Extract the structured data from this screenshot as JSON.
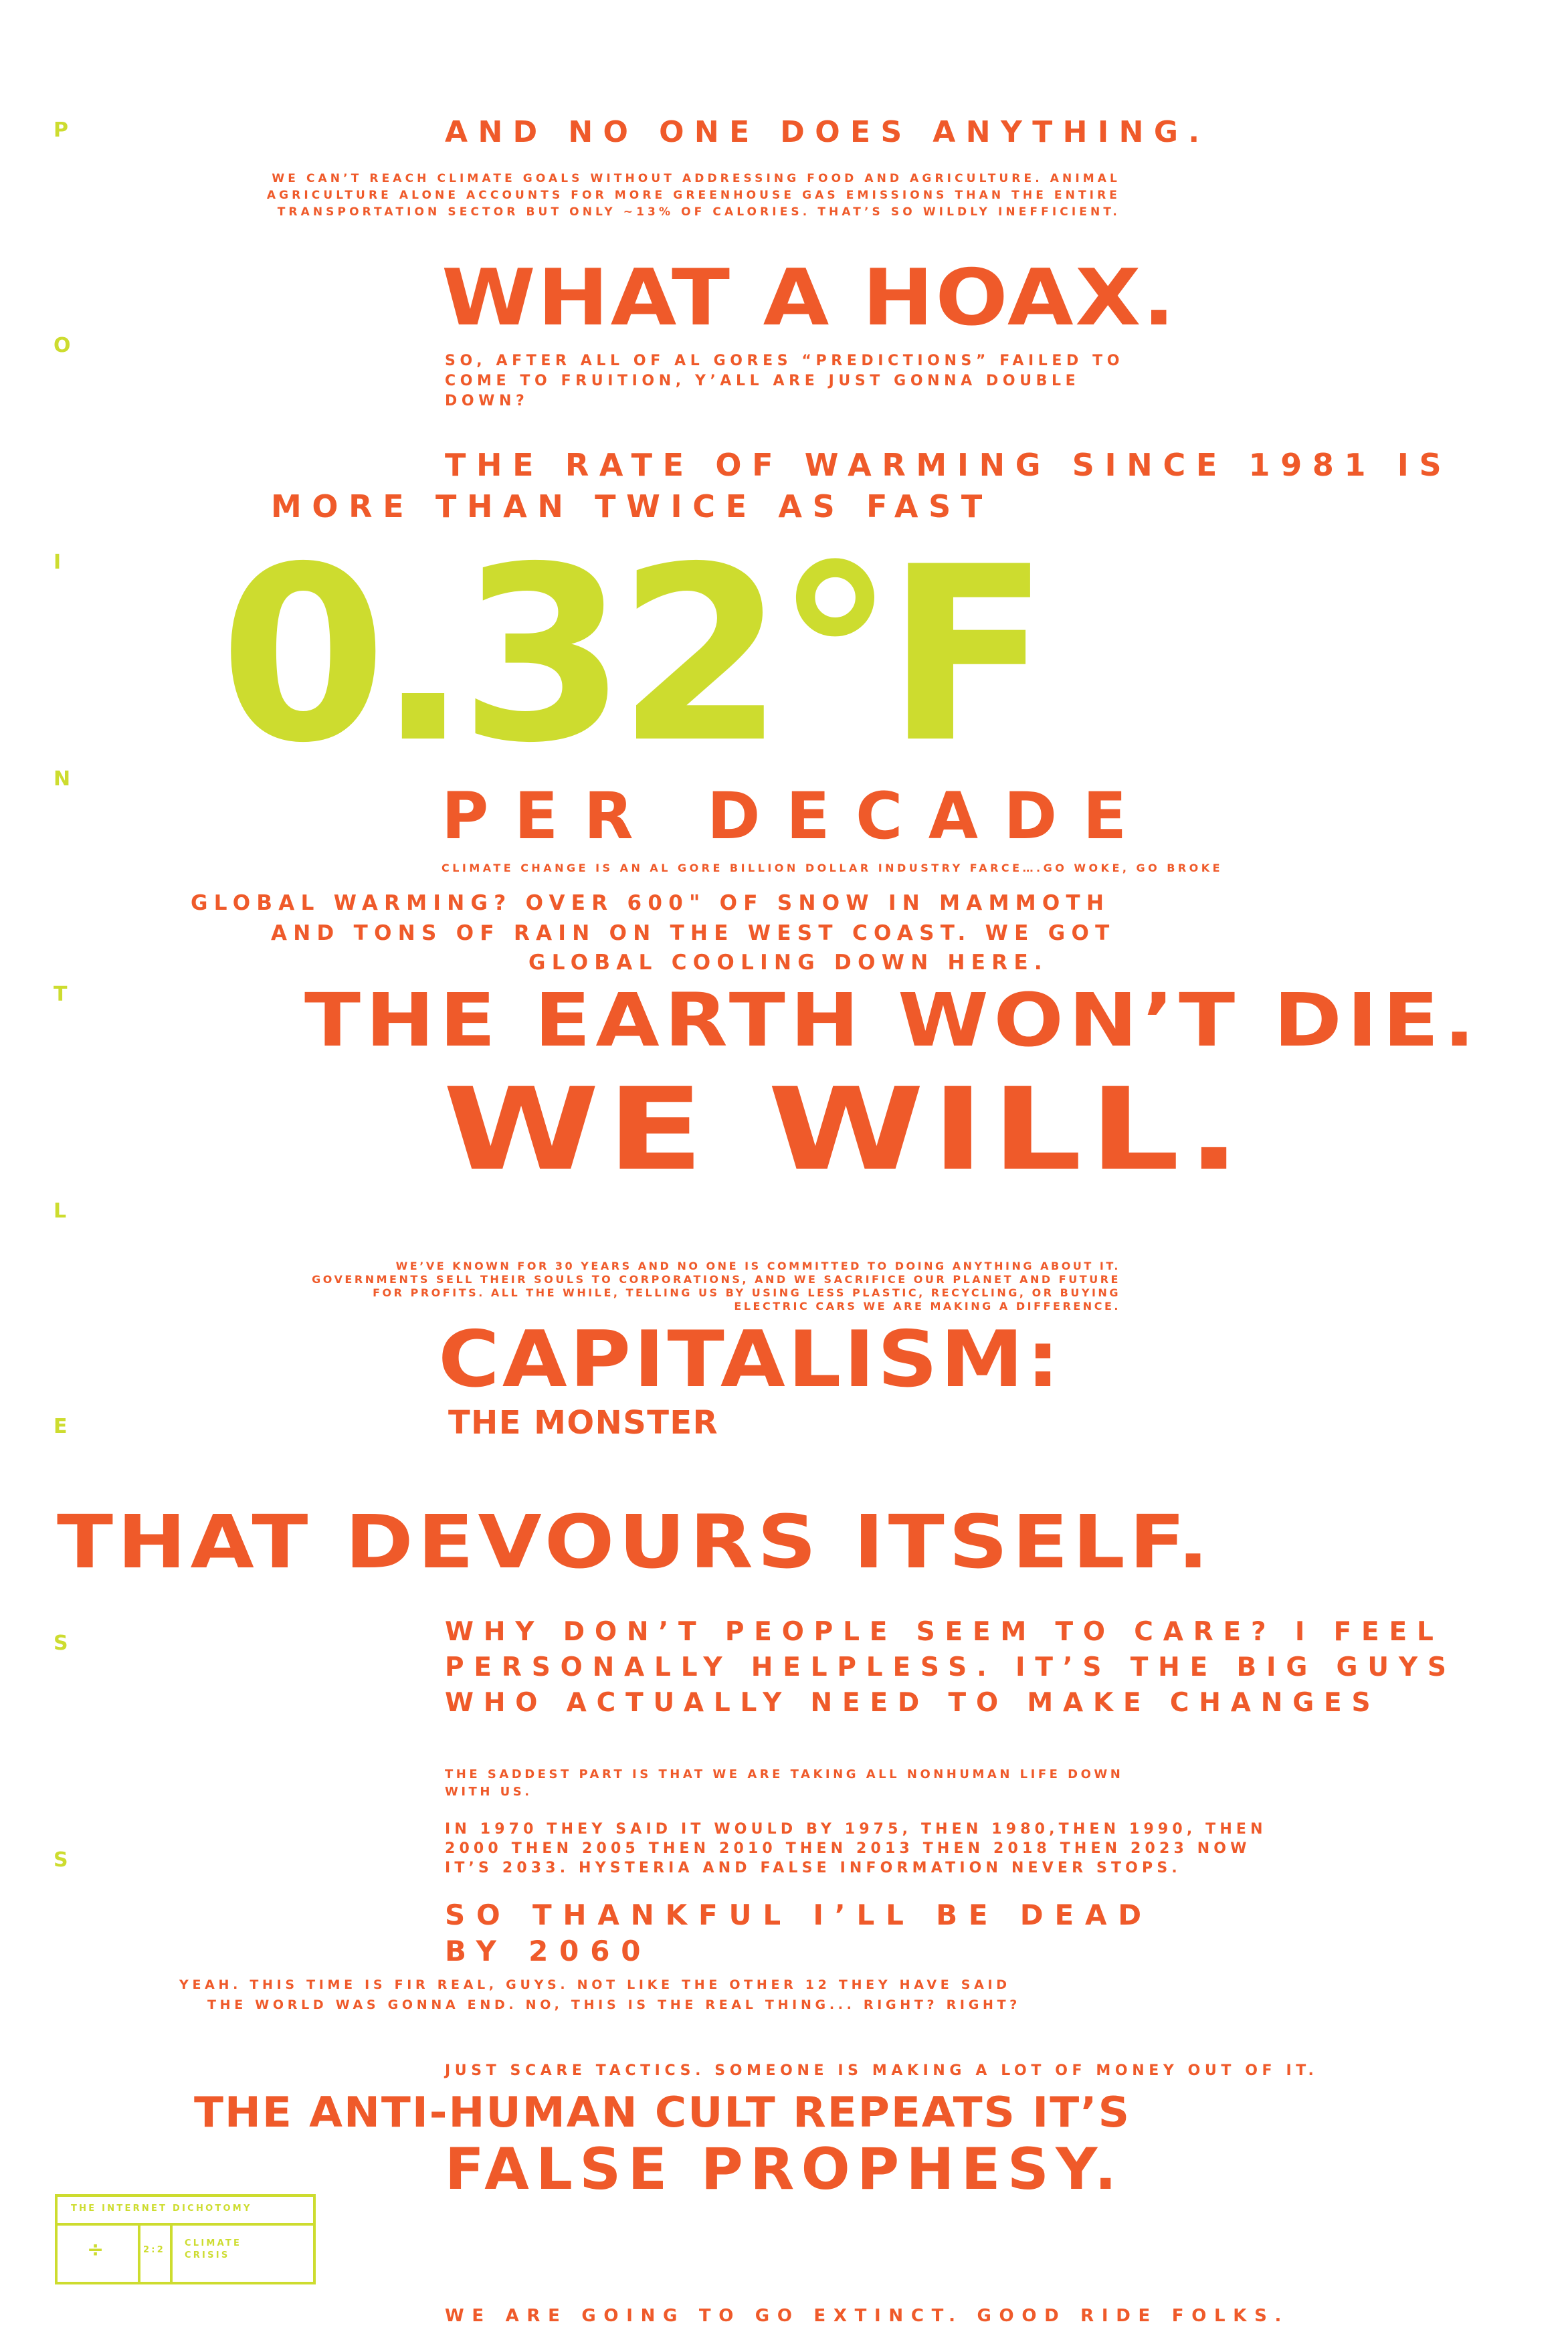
{
  "side_letters": [
    "P",
    "O",
    "I",
    "N",
    "T",
    "L",
    "E",
    "S",
    "S"
  ],
  "lines": {
    "l1": "AND NO ONE DOES ANYTHING.",
    "l2": "WE CAN’T REACH CLIMATE GOALS WITHOUT ADDRESSING FOOD AND AGRICULTURE. ANIMAL AGRICULTURE ALONE ACCOUNTS FOR MORE GREENHOUSE GAS EMISSIONS THAN THE ENTIRE TRANSPORTATION SECTOR BUT ONLY ~13% OF CALORIES. THAT’S SO WILDLY INEFFICIENT.",
    "l3": "WHAT A HOAX.",
    "l4": "SO, AFTER ALL OF AL GORES “PREDICTIONS” FAILED TO COME TO FRUITION, Y’ALL ARE JUST GONNA DOUBLE DOWN?",
    "l5a": "THE RATE OF WARMING SINCE 1981 IS",
    "l5b": "MORE THAN TWICE AS FAST",
    "big": "0.32°F",
    "l6": "PER DECADE",
    "l7": "CLIMATE CHANGE IS AN AL GORE BILLION DOLLAR INDUSTRY FARCE….GO WOKE, GO BROKE",
    "l8a": "GLOBAL WARMING? OVER 600\" OF SNOW IN MAMMOTH",
    "l8b": "AND TONS OF RAIN ON THE WEST COAST. WE GOT",
    "l8c": "GLOBAL COOLING DOWN HERE.",
    "l9": "THE EARTH WON’T DIE.",
    "l10": "WE WILL.",
    "l11": "WE’VE KNOWN FOR 30 YEARS AND NO ONE IS COMMITTED TO DOING ANYTHING ABOUT IT. GOVERNMENTS SELL THEIR SOULS TO CORPORATIONS, AND WE SACRIFICE OUR PLANET AND FUTURE FOR PROFITS. ALL THE WHILE, TELLING US BY USING LESS PLASTIC, RECYCLING, OR BUYING ELECTRIC CARS WE ARE MAKING A DIFFERENCE.",
    "l12": "CAPITALISM:",
    "l13": "THE MONSTER",
    "l14": "THAT DEVOURS ITSELF.",
    "l15a": "WHY DON’T PEOPLE SEEM TO CARE? I FEEL",
    "l15b": "PERSONALLY HELPLESS. IT’S THE BIG GUYS",
    "l15c": "WHO ACTUALLY NEED TO MAKE CHANGES",
    "l16": "THE SADDEST PART IS THAT WE ARE TAKING ALL NONHUMAN LIFE DOWN WITH US.",
    "l17": "IN 1970 THEY SAID IT WOULD BY 1975, THEN 1980,THEN 1990, THEN 2000 THEN 2005 THEN 2010 THEN 2013 THEN 2018 THEN 2023 NOW IT’S 2033. HYSTERIA AND FALSE INFORMATION NEVER STOPS.",
    "l18a": "SO THANKFUL I’LL BE DEAD",
    "l18b": "BY 2060",
    "l19a": "YEAH. THIS TIME IS FIR REAL, GUYS. NOT LIKE THE OTHER 12 THEY HAVE SAID",
    "l19b": "THE WORLD WAS GONNA END. NO, THIS IS THE REAL THING... RIGHT? RIGHT?",
    "l20": "JUST SCARE TACTICS. SOMEONE IS MAKING A LOT OF MONEY OUT OF IT.",
    "l21": "THE ANTI-HUMAN CULT REPEATS IT’S",
    "l22": "FALSE PROPHESY.",
    "l23": "WE ARE GOING TO GO EXTINCT. GOOD RIDE FOLKS."
  },
  "footer": {
    "title": "THE INTERNET DICHOTOMY",
    "fraction": "÷",
    "number": "2:2",
    "label_1": "CLIMATE",
    "label_2": "CRISIS"
  },
  "colors": {
    "orange": "#ef5a2a",
    "green": "#cddc2f",
    "background": "#ffffff"
  }
}
